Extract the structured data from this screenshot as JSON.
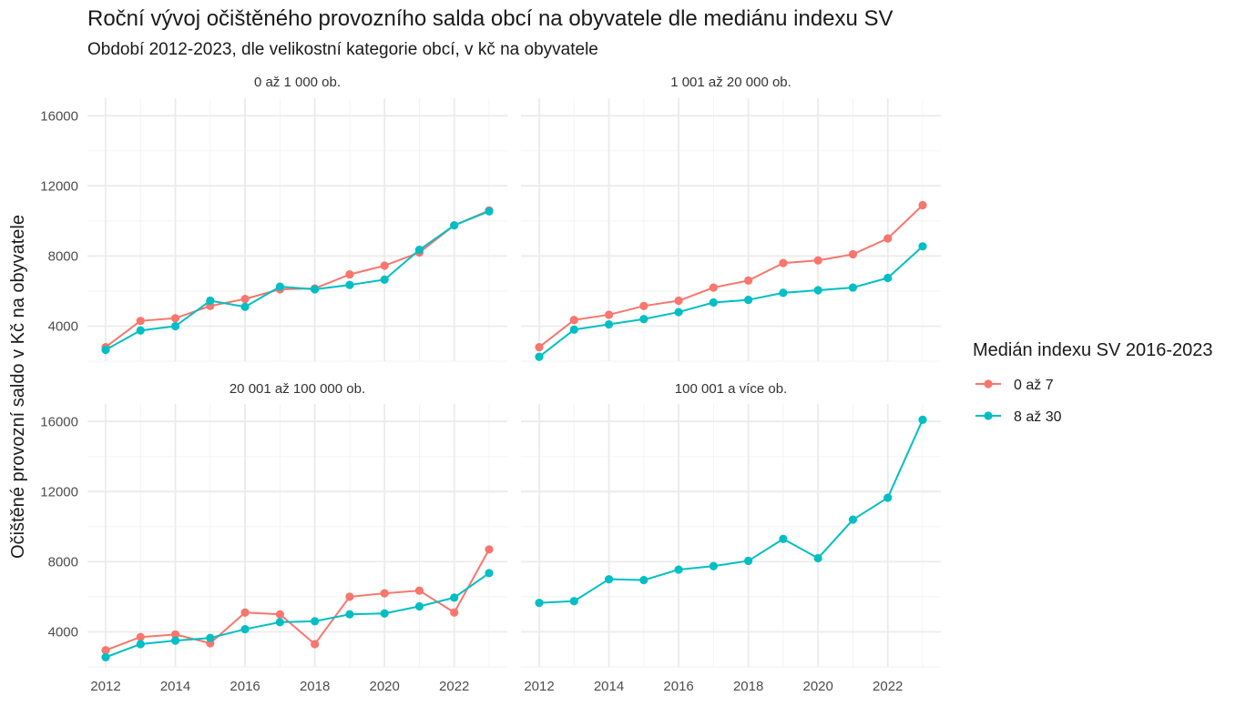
{
  "chart_data": {
    "type": "line",
    "title": "Roční vývoj očištěného provozního salda obcí na obyvatele dle mediánu indexu SV",
    "subtitle": "Období 2012-2023, dle velikostní kategorie obcí, v kč na obyvatele",
    "ylabel": "Očištěné provozní saldo v Kč na obyvatele",
    "xlabel": "",
    "x": [
      2012,
      2013,
      2014,
      2015,
      2016,
      2017,
      2018,
      2019,
      2020,
      2021,
      2022,
      2023
    ],
    "xticks": [
      "2012",
      "2014",
      "2016",
      "2018",
      "2020",
      "2022"
    ],
    "xlim": [
      2012,
      2023
    ],
    "ylim": [
      2000,
      17000
    ],
    "yticks": [
      "4000",
      "8000",
      "12000",
      "16000"
    ],
    "grid": true,
    "legend": {
      "title": "Medián indexu SV 2016-2023",
      "placement": "right",
      "items": [
        {
          "label": "0 až 7",
          "color": "#F8766D"
        },
        {
          "label": "8 až 30",
          "color": "#00BFC4"
        }
      ]
    },
    "panels": [
      {
        "label": "0 až 1 000 ob.",
        "series": [
          {
            "name": "0 až 7",
            "color": "#F8766D",
            "values": [
              2800,
              4300,
              4450,
              5150,
              5550,
              6100,
              6150,
              6950,
              7450,
              8200,
              9750,
              10600
            ]
          },
          {
            "name": "8 až 30",
            "color": "#00BFC4",
            "values": [
              2650,
              3750,
              4000,
              5450,
              5100,
              6250,
              6100,
              6350,
              6650,
              8350,
              9750,
              10550
            ]
          }
        ]
      },
      {
        "label": "1 001 až 20 000 ob.",
        "series": [
          {
            "name": "0 až 7",
            "color": "#F8766D",
            "values": [
              2800,
              4350,
              4650,
              5150,
              5450,
              6200,
              6600,
              7600,
              7750,
              8100,
              9000,
              10900
            ]
          },
          {
            "name": "8 až 30",
            "color": "#00BFC4",
            "values": [
              2250,
              3800,
              4100,
              4400,
              4800,
              5350,
              5500,
              5900,
              6050,
              6200,
              6750,
              8550
            ]
          }
        ]
      },
      {
        "label": "20 001 až 100 000 ob.",
        "series": [
          {
            "name": "0 až 7",
            "color": "#F8766D",
            "values": [
              2950,
              3700,
              3850,
              3350,
              5100,
              5000,
              3300,
              6000,
              6200,
              6350,
              5100,
              8700
            ]
          },
          {
            "name": "8 až 30",
            "color": "#00BFC4",
            "values": [
              2550,
              3300,
              3500,
              3650,
              4150,
              4550,
              4600,
              5000,
              5050,
              5450,
              5950,
              7350
            ]
          }
        ]
      },
      {
        "label": "100 001 a více ob.",
        "series": [
          {
            "name": "8 až 30",
            "color": "#00BFC4",
            "values": [
              5650,
              5750,
              7000,
              6950,
              7550,
              7750,
              8050,
              9300,
              8200,
              10400,
              11650,
              16100
            ]
          }
        ]
      }
    ]
  }
}
